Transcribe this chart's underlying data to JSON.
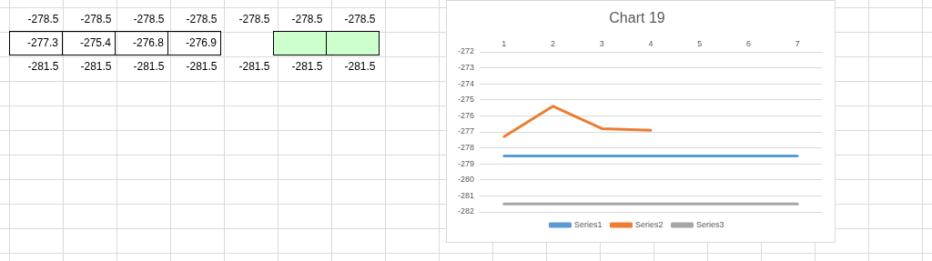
{
  "chart_data": {
    "type": "line",
    "title": "Chart 19",
    "categories": [
      "1",
      "2",
      "3",
      "4",
      "5",
      "6",
      "7"
    ],
    "series": [
      {
        "name": "Series1",
        "color": "#5b9bd5",
        "values": [
          -278.5,
          -278.5,
          -278.5,
          -278.5,
          -278.5,
          -278.5,
          -278.5
        ]
      },
      {
        "name": "Series2",
        "color": "#ed7d31",
        "values": [
          -277.3,
          -275.4,
          -276.8,
          -276.9,
          null,
          null,
          null
        ]
      },
      {
        "name": "Series3",
        "color": "#a5a5a5",
        "values": [
          -281.5,
          -281.5,
          -281.5,
          -281.5,
          -281.5,
          -281.5,
          -281.5
        ]
      }
    ],
    "ylim": [
      -282,
      -272
    ],
    "yticks": [
      -272,
      -273,
      -274,
      -275,
      -276,
      -277,
      -278,
      -279,
      -280,
      -281,
      -282
    ],
    "grid": "y",
    "legend": "bottom",
    "marker": "none",
    "line_style": "solid",
    "annotations": [
      "-278.5",
      "-278.5",
      "-278.5",
      "-278.5",
      "-278.5",
      "-278.5",
      "-278.5",
      "-277.3",
      "-275.4",
      "-276.8",
      "-276.9",
      "-281.5",
      "-281.5",
      "-281.5",
      "-281.5",
      "-281.5",
      "-281.5",
      "-281.5"
    ]
  }
}
